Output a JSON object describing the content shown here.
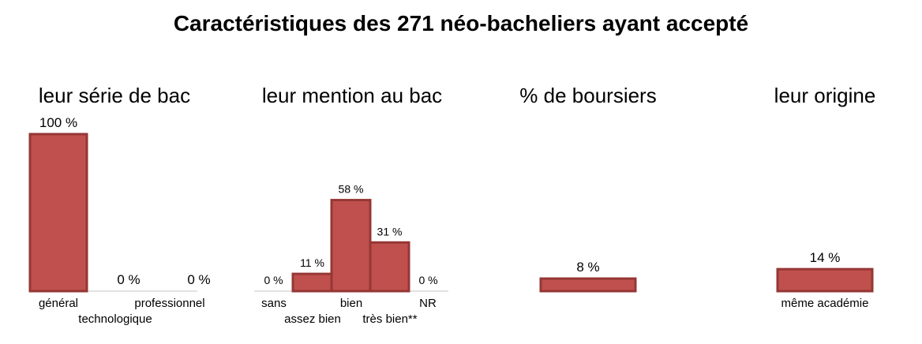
{
  "title": "Caractéristiques des 271 néo-bacheliers ayant accepté",
  "colors": {
    "bar_fill": "#c0504d",
    "bar_stroke": "#953735"
  },
  "chart_data": [
    {
      "type": "bar",
      "title": "leur série de bac",
      "categories": [
        "général",
        "technologique",
        "professionnel"
      ],
      "values": [
        100,
        0,
        0
      ],
      "data_labels": [
        "100 %",
        "0 %",
        "0 %"
      ],
      "ylim": [
        0,
        100
      ]
    },
    {
      "type": "bar",
      "title": "leur mention au bac",
      "categories": [
        "sans",
        "assez bien",
        "bien",
        "très bien**",
        "NR"
      ],
      "values": [
        0,
        11,
        58,
        31,
        0
      ],
      "data_labels": [
        "0 %",
        "11 %",
        "58 %",
        "31 %",
        "0 %"
      ],
      "ylim": [
        0,
        100
      ]
    },
    {
      "type": "bar",
      "title": "% de boursiers",
      "categories": [
        ""
      ],
      "values": [
        8
      ],
      "data_labels": [
        "8 %"
      ],
      "ylim": [
        0,
        100
      ]
    },
    {
      "type": "bar",
      "title": "leur origine",
      "categories": [
        "même académie"
      ],
      "values": [
        14
      ],
      "data_labels": [
        "14 %"
      ],
      "ylim": [
        0,
        100
      ]
    }
  ]
}
